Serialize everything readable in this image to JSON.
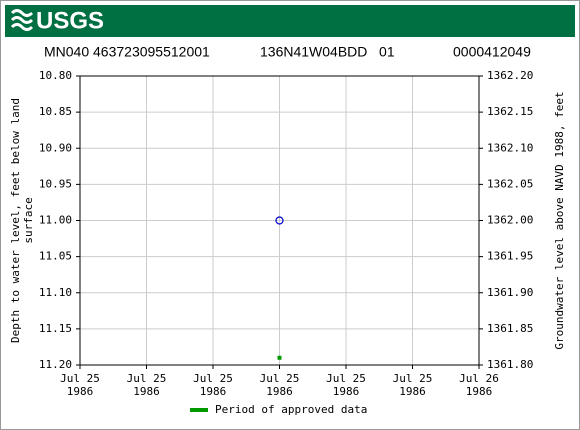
{
  "header": {
    "logo": "USGS"
  },
  "chart_data": {
    "type": "scatter",
    "title": [
      "MN040 463723095512001",
      "136N41W04BDD   01",
      "0000412049"
    ],
    "ylabel": "Depth to water level, feet below land surface",
    "y2label": "Groundwater level above NAVD 1988, feet",
    "ylim": [
      10.8,
      11.2
    ],
    "yticks": [
      {
        "value": 10.8,
        "label": "10.80"
      },
      10.85,
      {
        "value": 10.9,
        "label": "10.90"
      },
      10.95,
      {
        "value": 11.0,
        "label": "11.00"
      },
      11.05,
      {
        "value": 11.1,
        "label": "11.10"
      },
      11.15,
      {
        "value": 11.2,
        "label": "11.20"
      }
    ],
    "y2lim": [
      1362.2,
      1361.8
    ],
    "y2ticks": [
      {
        "value": 1362.2,
        "label": "1362.20"
      },
      1362.15,
      {
        "value": 1362.1,
        "label": "1362.10"
      },
      1362.05,
      {
        "value": 1362.0,
        "label": "1362.00"
      },
      1361.95,
      {
        "value": 1361.9,
        "label": "1361.90"
      },
      1361.85,
      {
        "value": 1361.8,
        "label": "1361.80"
      }
    ],
    "xlim": [
      "1986-07-25T00:00",
      "1986-07-26T00:00"
    ],
    "xticks": [
      {
        "value": "1986-07-25T00:00",
        "label": "Jul 25\n1986"
      },
      {
        "value": "1986-07-25T04:00",
        "label": "Jul 25\n1986"
      },
      {
        "value": "1986-07-25T08:00",
        "label": "Jul 25\n1986"
      },
      {
        "value": "1986-07-25T12:00",
        "label": "Jul 25\n1986"
      },
      {
        "value": "1986-07-25T16:00",
        "label": "Jul 25\n1986"
      },
      {
        "value": "1986-07-25T20:00",
        "label": "Jul 25\n1986"
      },
      {
        "value": "1986-07-26T00:00",
        "label": "Jul 26\n1986"
      }
    ],
    "grid": true,
    "measurements": {
      "x": [
        "1986-07-25T12:00"
      ],
      "values": [
        11.0
      ],
      "color": "#0000cc"
    },
    "approved": {
      "name": "Period of approved data",
      "x": [
        "1986-07-25T12:00"
      ],
      "values": [
        11.19
      ],
      "color": "#009900"
    }
  }
}
